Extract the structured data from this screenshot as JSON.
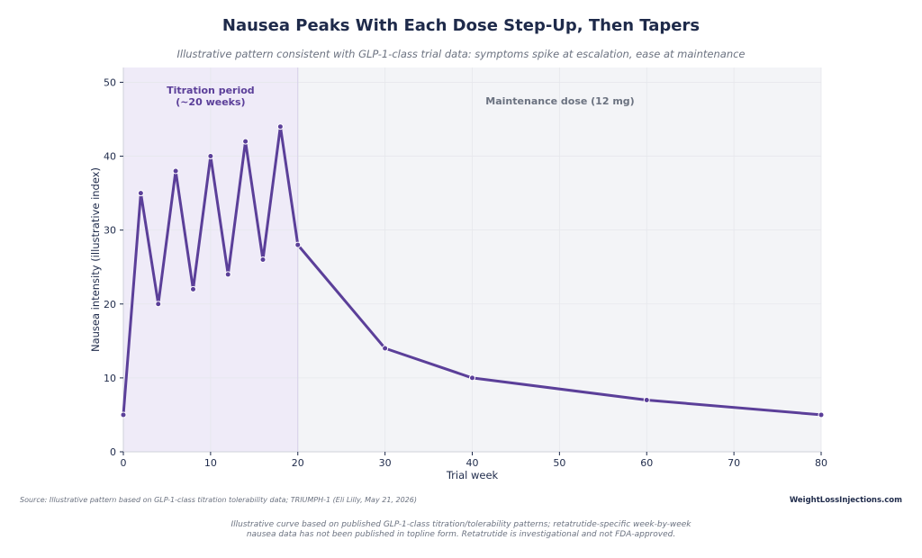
{
  "chart_data": {
    "type": "line",
    "title": "Nausea Peaks With Each Dose Step-Up, Then Tapers",
    "subtitle": "Illustrative pattern consistent with GLP-1-class trial data: symptoms spike at escalation, ease at maintenance",
    "xlabel": "Trial week",
    "ylabel": "Nausea intensity (illustrative index)",
    "xlim": [
      0,
      80
    ],
    "ylim": [
      0,
      52
    ],
    "xticks": [
      0,
      10,
      20,
      30,
      40,
      50,
      60,
      70,
      80
    ],
    "yticks": [
      0,
      10,
      20,
      30,
      40,
      50
    ],
    "grid": true,
    "series": [
      {
        "x": [
          0,
          2,
          4,
          6,
          8,
          10,
          12,
          14,
          16,
          18,
          20,
          30,
          40,
          60,
          80
        ],
        "y": [
          5,
          35,
          20,
          38,
          22,
          40,
          24,
          42,
          26,
          44,
          28,
          14,
          10,
          7,
          5
        ]
      }
    ],
    "regions": [
      {
        "label_line1": "Titration period",
        "label_line2": "(~20 weeks)",
        "x_start": 0,
        "x_end": 20
      },
      {
        "label": "Maintenance dose (12 mg)",
        "x_start": 20,
        "x_end": 80
      }
    ],
    "colors": {
      "line": "#5b3f99",
      "titration_bg": "#efebf8",
      "maintenance_bg": "#f3f4f7",
      "titration_label": "#5b3f99",
      "maintenance_label": "#6b7280",
      "axis_text": "#1e2a4a"
    }
  },
  "footer": {
    "source": "Source: Illustrative pattern based on GLP-1-class titration tolerability data; TRIUMPH-1 (Eli Lilly, May 21, 2026)",
    "brand": "WeightLossInjections.com",
    "note_line1": "Illustrative curve based on published GLP-1-class titration/tolerability patterns; retatrutide-specific week-by-week",
    "note_line2": "nausea data has not been published in topline form. Retatrutide is investigational and not FDA-approved."
  }
}
